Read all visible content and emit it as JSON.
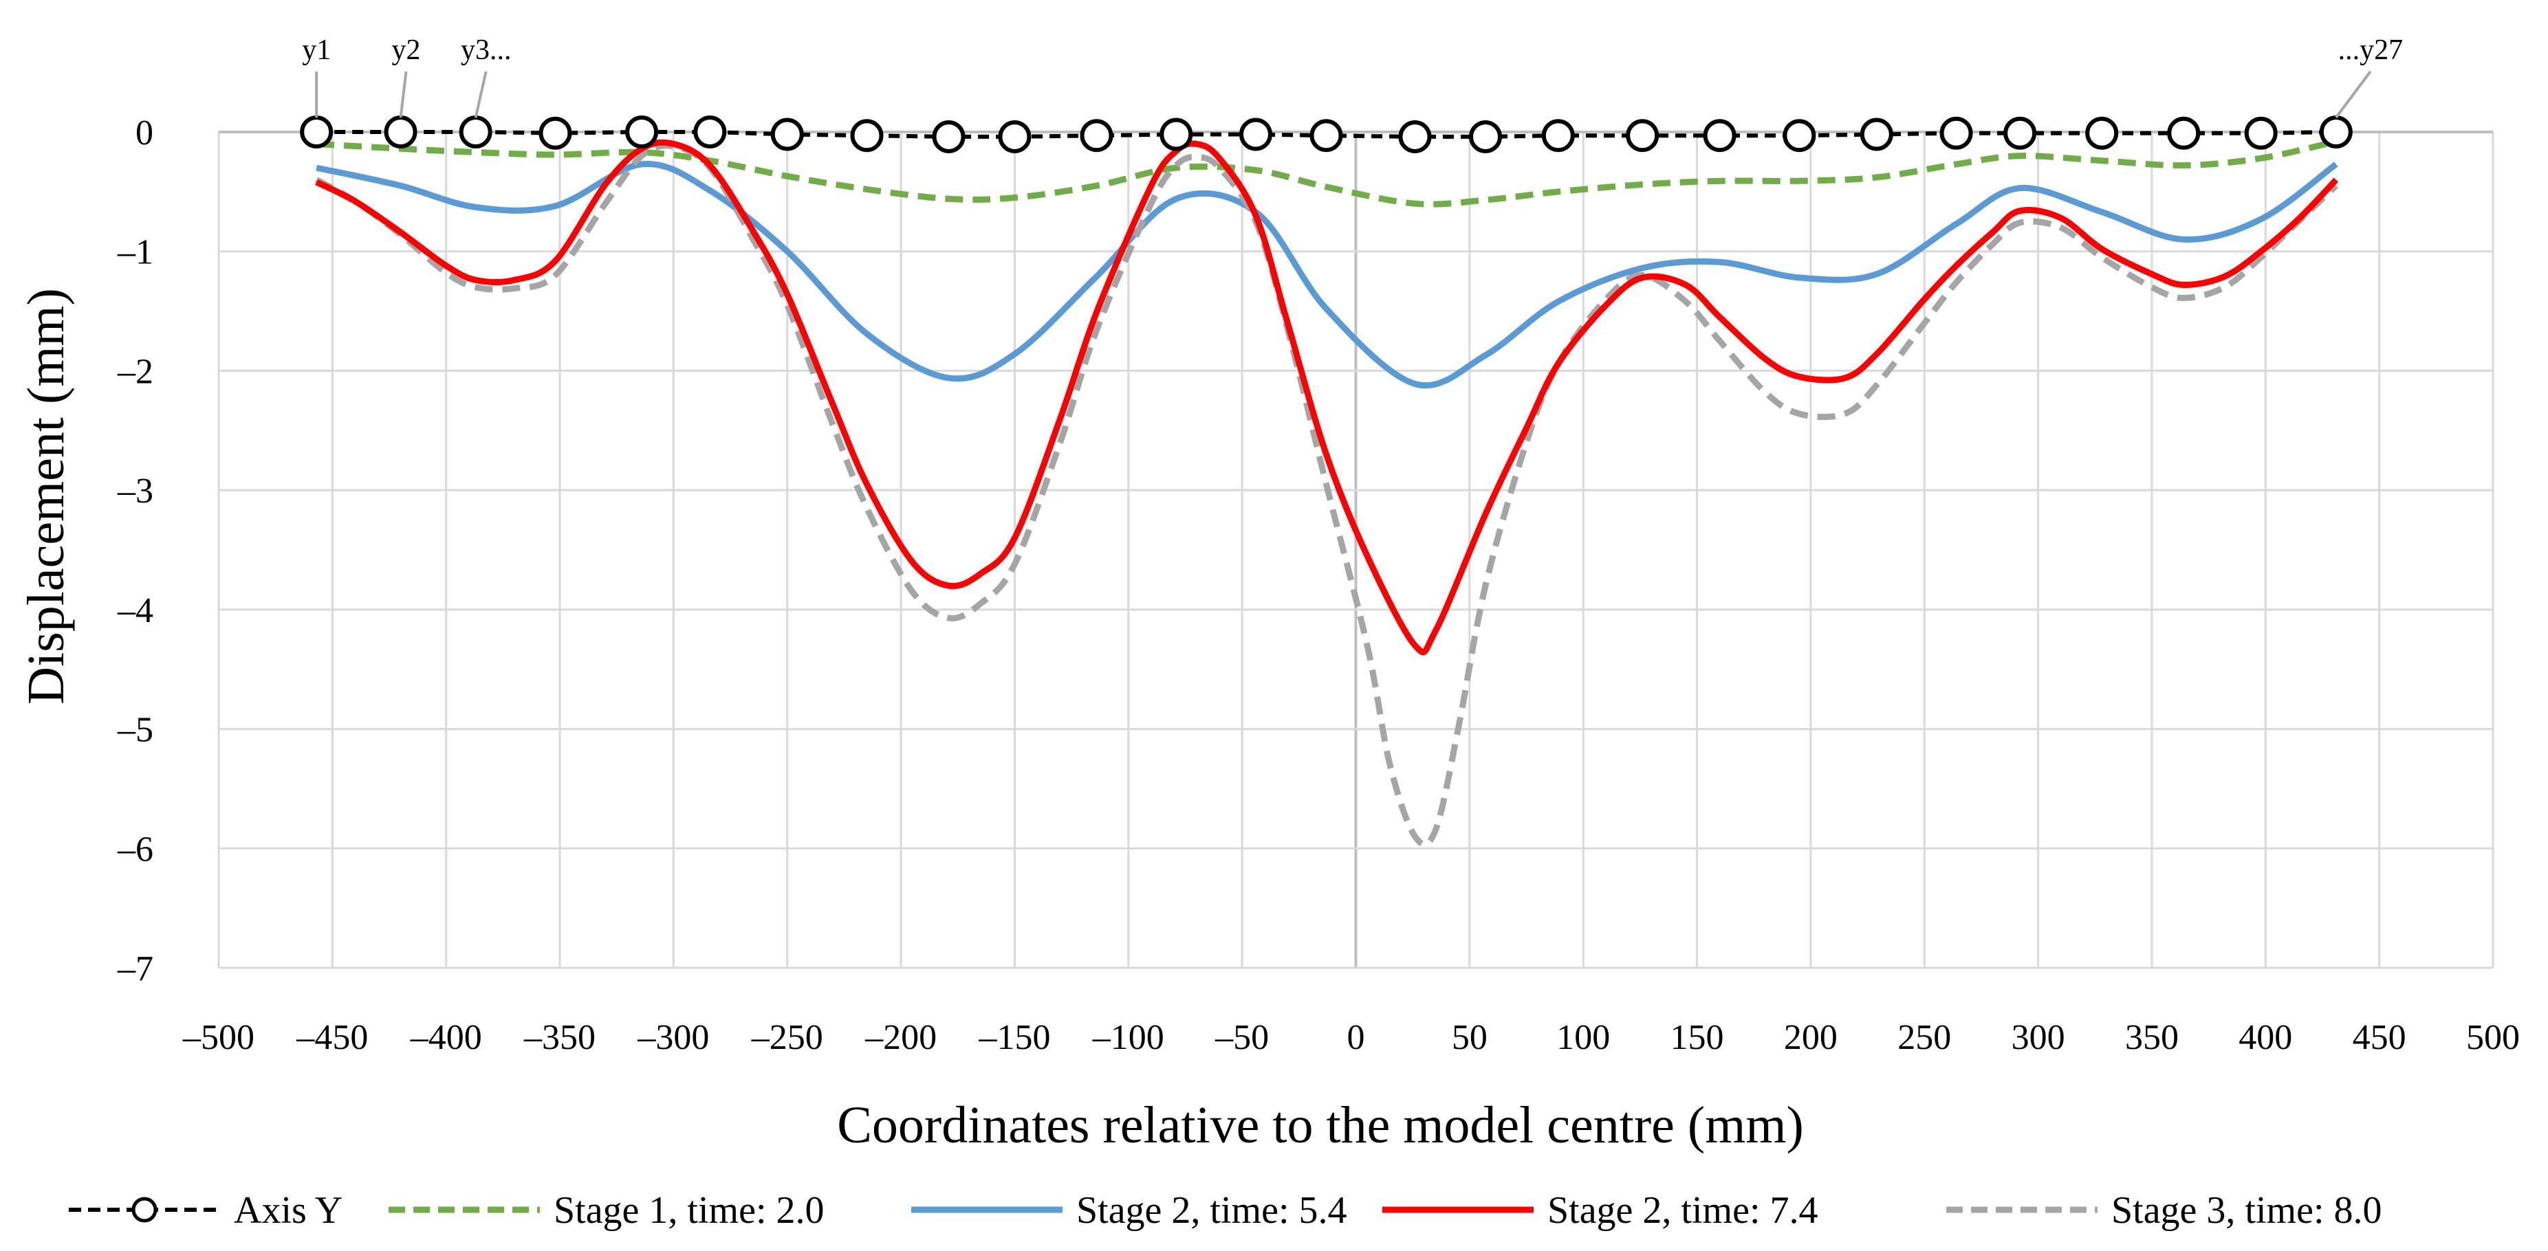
{
  "chart_data": {
    "type": "line",
    "title": "",
    "xlabel": "Coordinates relative to the model centre (mm)",
    "ylabel": "Displacement (mm)",
    "xlim": [
      -500,
      500
    ],
    "ylim": [
      -7,
      0
    ],
    "xticks": [
      -500,
      -450,
      -400,
      -350,
      -300,
      -250,
      -200,
      -150,
      -100,
      -50,
      0,
      50,
      100,
      150,
      200,
      250,
      300,
      350,
      400,
      450,
      500
    ],
    "xtick_labels": [
      "–500",
      "–450",
      "–400",
      "–350",
      "–300",
      "–250",
      "–200",
      "–150",
      "–100",
      "–50",
      "0",
      "50",
      "100",
      "150",
      "200",
      "250",
      "300",
      "350",
      "400",
      "450",
      "500"
    ],
    "yticks": [
      0,
      -1,
      -2,
      -3,
      -4,
      -5,
      -6,
      -7
    ],
    "ytick_labels": [
      "0",
      "–1",
      "–2",
      "–3",
      "–4",
      "–5",
      "–6",
      "–7"
    ],
    "grid": true,
    "legend_position": "bottom",
    "x": [
      -457,
      -420,
      -387,
      -352,
      -314,
      -284,
      -250,
      -215,
      -179,
      -150,
      -114,
      -79,
      -44,
      -13,
      26,
      57,
      89,
      126,
      160,
      195,
      229,
      264,
      292,
      328,
      364,
      398,
      431
    ],
    "point_annotations": [
      {
        "label": "y1",
        "x": -457
      },
      {
        "label": "y2",
        "x": -420
      },
      {
        "label": "y3...",
        "x": -387
      },
      {
        "label": "...y27",
        "x": 431
      }
    ],
    "series": [
      {
        "name": "Axis Y",
        "color": "#000000",
        "dash": "dashed",
        "marker": "circle",
        "values": [
          0,
          0,
          0,
          -0.01,
          0,
          0,
          -0.02,
          -0.03,
          -0.04,
          -0.04,
          -0.03,
          -0.02,
          -0.02,
          -0.03,
          -0.04,
          -0.04,
          -0.03,
          -0.03,
          -0.03,
          -0.03,
          -0.02,
          -0.01,
          -0.01,
          -0.01,
          -0.01,
          -0.01,
          0
        ]
      },
      {
        "name": "Stage 1, time: 2.0",
        "color": "#70ad47",
        "dash": "dashed",
        "x": [
          -457,
          -420,
          -387,
          -352,
          -314,
          -284,
          -250,
          -215,
          -179,
          -150,
          -114,
          -79,
          -44,
          -13,
          26,
          57,
          89,
          126,
          160,
          195,
          229,
          264,
          292,
          328,
          364,
          398,
          431
        ],
        "values": [
          -0.1,
          -0.14,
          -0.17,
          -0.19,
          -0.17,
          -0.24,
          -0.37,
          -0.48,
          -0.56,
          -0.55,
          -0.45,
          -0.3,
          -0.32,
          -0.46,
          -0.6,
          -0.57,
          -0.5,
          -0.44,
          -0.41,
          -0.41,
          -0.38,
          -0.27,
          -0.2,
          -0.24,
          -0.28,
          -0.22,
          -0.08
        ]
      },
      {
        "name": "Stage 2, time: 5.4",
        "color": "#5b9bd5",
        "dash": "solid",
        "x": [
          -457,
          -420,
          -387,
          -352,
          -314,
          -284,
          -250,
          -215,
          -179,
          -150,
          -114,
          -79,
          -44,
          -13,
          26,
          57,
          89,
          126,
          160,
          195,
          229,
          264,
          292,
          328,
          364,
          398,
          431
        ],
        "values": [
          -0.3,
          -0.45,
          -0.63,
          -0.62,
          -0.27,
          -0.49,
          -1.0,
          -1.69,
          -2.06,
          -1.86,
          -1.21,
          -0.56,
          -0.67,
          -1.48,
          -2.11,
          -1.87,
          -1.42,
          -1.14,
          -1.09,
          -1.22,
          -1.19,
          -0.77,
          -0.47,
          -0.67,
          -0.9,
          -0.73,
          -0.27
        ]
      },
      {
        "name": "Stage 2, time: 7.4",
        "color": "#ff0000",
        "dash": "solid",
        "x": [
          -457,
          -440,
          -420,
          -400,
          -387,
          -370,
          -352,
          -330,
          -314,
          -300,
          -284,
          -265,
          -250,
          -230,
          -215,
          -195,
          -179,
          -165,
          -150,
          -130,
          -114,
          -90,
          -79,
          -70,
          -60,
          -44,
          -30,
          -13,
          5,
          26,
          35,
          57,
          75,
          89,
          110,
          126,
          145,
          160,
          180,
          195,
          215,
          229,
          250,
          264,
          280,
          292,
          310,
          328,
          350,
          364,
          382,
          398,
          415,
          431
        ],
        "values": [
          -0.42,
          -0.58,
          -0.84,
          -1.12,
          -1.24,
          -1.24,
          -1.08,
          -0.44,
          -0.14,
          -0.1,
          -0.28,
          -0.83,
          -1.36,
          -2.28,
          -2.95,
          -3.6,
          -3.8,
          -3.7,
          -3.4,
          -2.4,
          -1.51,
          -0.45,
          -0.16,
          -0.1,
          -0.22,
          -0.7,
          -1.6,
          -2.7,
          -3.55,
          -4.3,
          -4.18,
          -3.2,
          -2.48,
          -1.94,
          -1.45,
          -1.22,
          -1.28,
          -1.55,
          -1.9,
          -2.05,
          -2.06,
          -1.86,
          -1.4,
          -1.12,
          -0.84,
          -0.66,
          -0.72,
          -0.98,
          -1.19,
          -1.28,
          -1.21,
          -1.0,
          -0.72,
          -0.4
        ]
      },
      {
        "name": "Stage 3, time: 8.0",
        "color": "#a5a5a5",
        "dash": "dashed",
        "x": [
          -457,
          -440,
          -420,
          -400,
          -387,
          -370,
          -352,
          -330,
          -314,
          -300,
          -284,
          -265,
          -250,
          -230,
          -215,
          -195,
          -179,
          -165,
          -150,
          -130,
          -114,
          -90,
          -79,
          -70,
          -60,
          -44,
          -30,
          -13,
          5,
          15,
          26,
          35,
          45,
          57,
          75,
          89,
          110,
          126,
          145,
          160,
          180,
          195,
          215,
          229,
          250,
          264,
          280,
          292,
          310,
          328,
          350,
          364,
          382,
          398,
          415,
          431
        ],
        "values": [
          -0.4,
          -0.58,
          -0.86,
          -1.18,
          -1.3,
          -1.31,
          -1.2,
          -0.6,
          -0.2,
          -0.12,
          -0.3,
          -0.9,
          -1.45,
          -2.45,
          -3.15,
          -3.85,
          -4.07,
          -3.95,
          -3.62,
          -2.6,
          -1.66,
          -0.6,
          -0.28,
          -0.21,
          -0.3,
          -0.75,
          -1.65,
          -2.95,
          -4.3,
          -5.3,
          -5.9,
          -5.85,
          -5.0,
          -3.8,
          -2.6,
          -1.94,
          -1.4,
          -1.2,
          -1.42,
          -1.75,
          -2.18,
          -2.36,
          -2.36,
          -2.12,
          -1.6,
          -1.26,
          -0.94,
          -0.76,
          -0.8,
          -1.05,
          -1.3,
          -1.39,
          -1.3,
          -1.05,
          -0.74,
          -0.45
        ]
      }
    ]
  }
}
